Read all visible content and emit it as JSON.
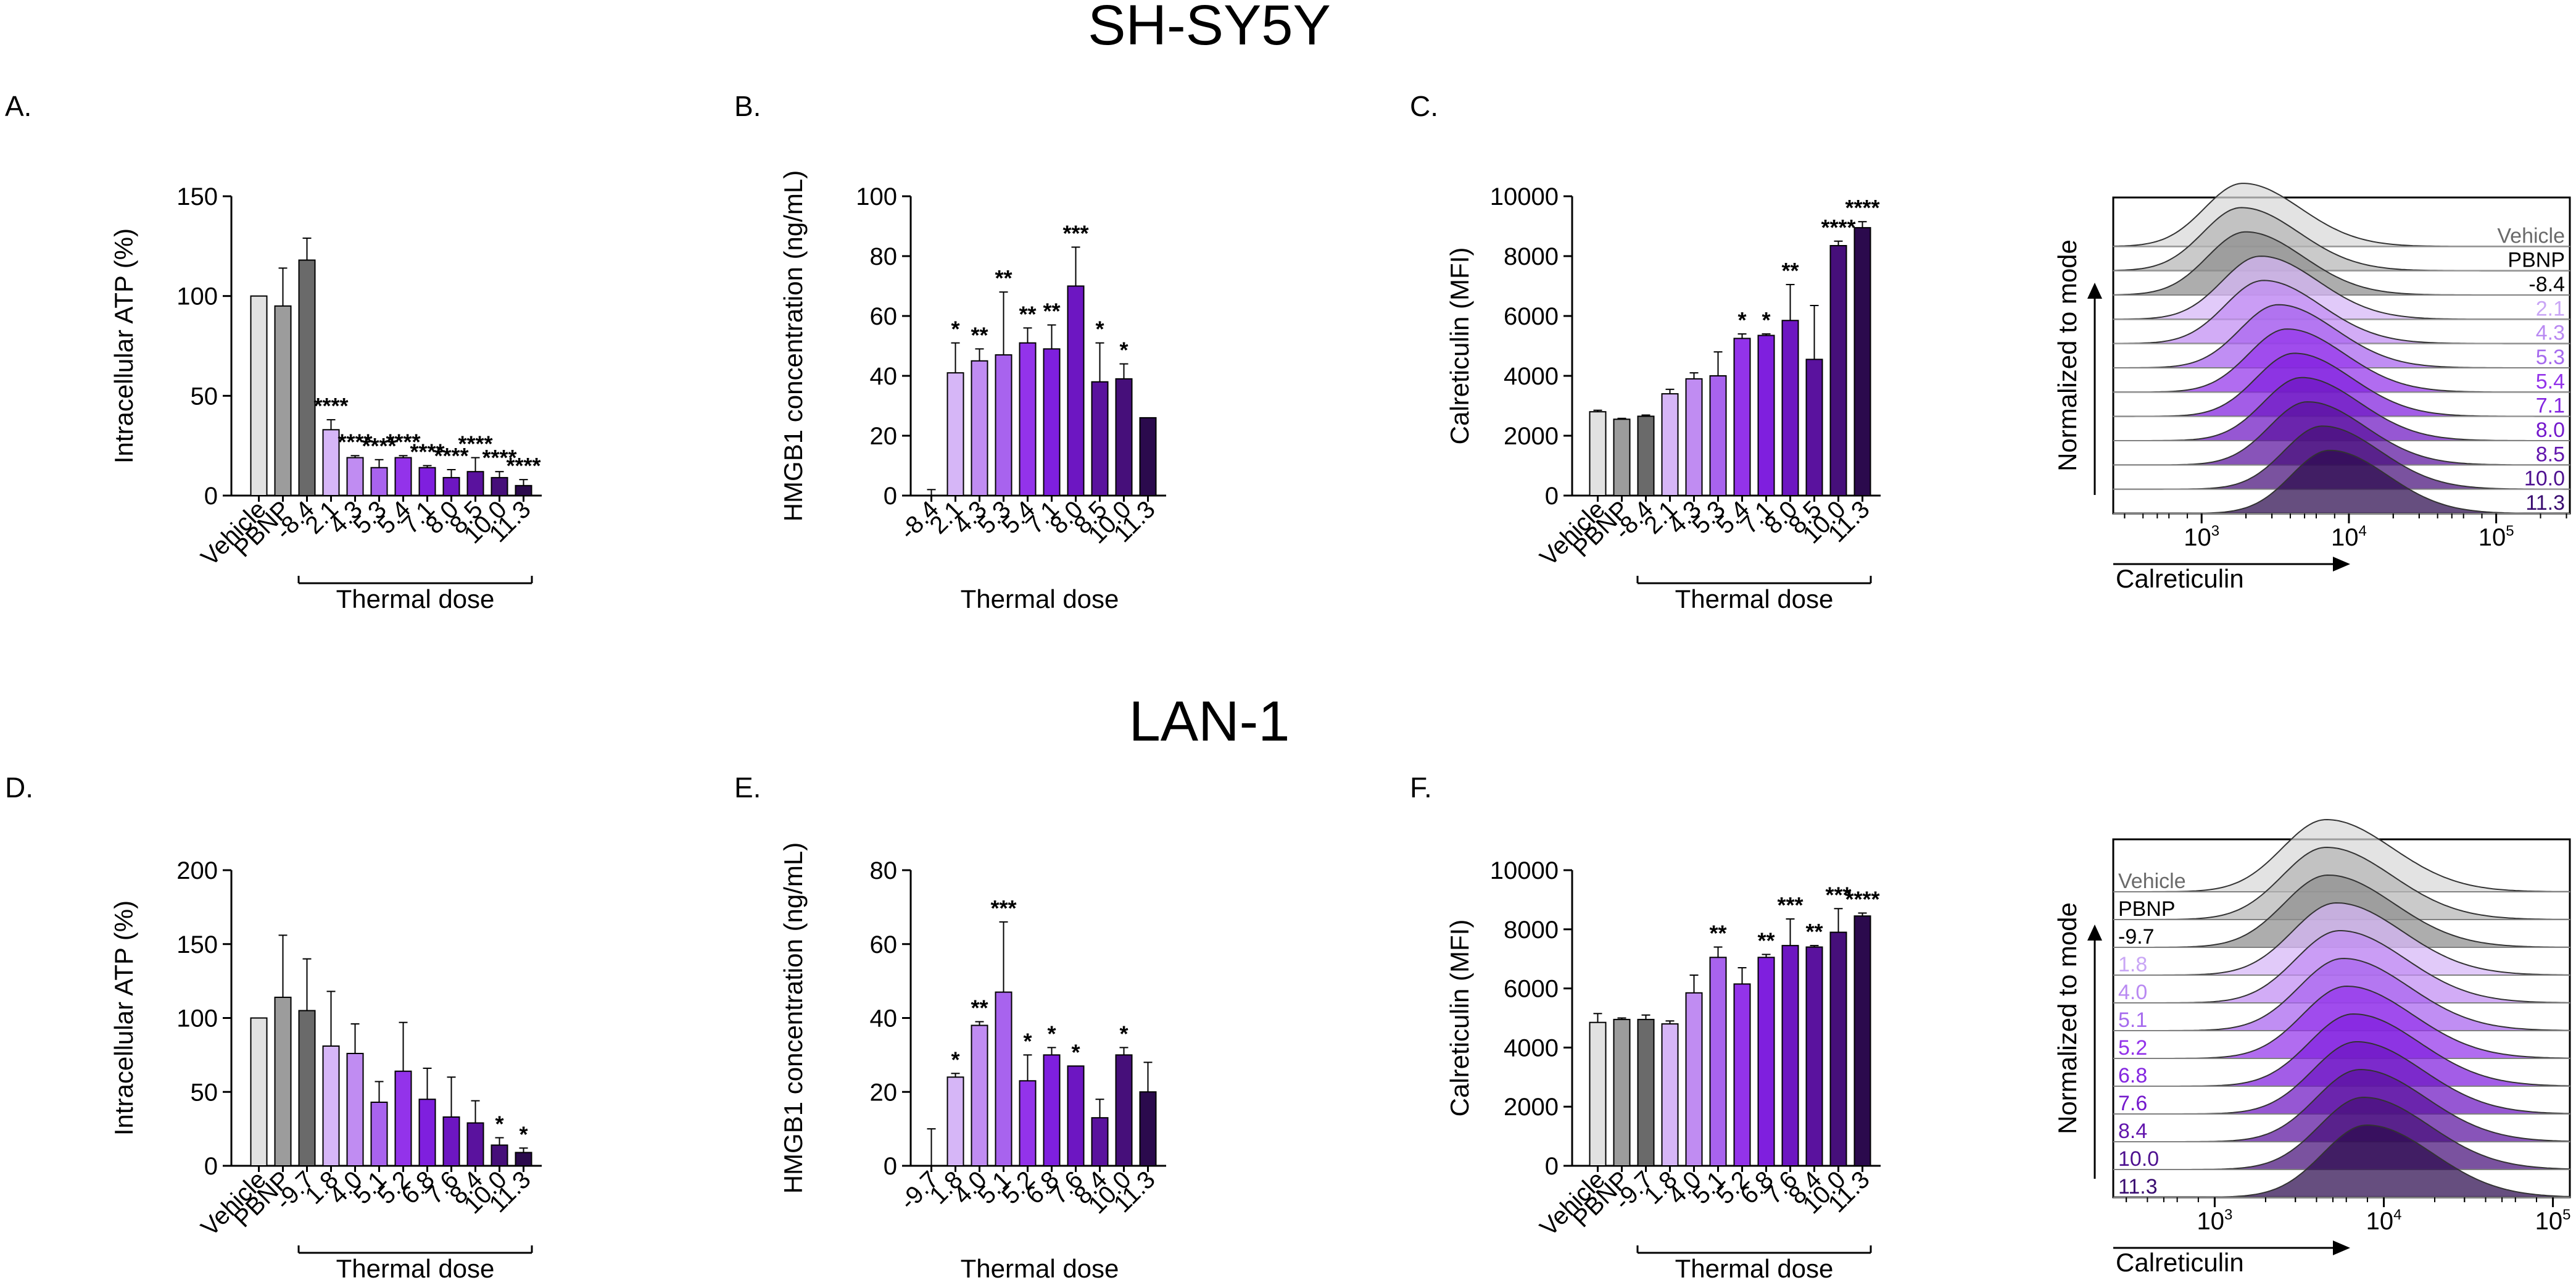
{
  "titles": {
    "top": "SH-SY5Y",
    "bottom": "LAN-1"
  },
  "colors": {
    "Vehicle": "#e2e2e2",
    "PBNP": "#9c9c9c",
    "control": "#6a6a6a",
    "ramp": [
      "#d6b6f7",
      "#c08cf2",
      "#a863ee",
      "#9333ea",
      "#7f1fde",
      "#6d16c2",
      "#5a129e",
      "#460f7a",
      "#2b0a4d"
    ],
    "flow_labels": [
      "#6a6a6a",
      "#000000",
      "#000000",
      "#c9a6f5",
      "#b989f2",
      "#a66bee",
      "#9333ea",
      "#8426e0",
      "#7419cc",
      "#6216ad",
      "#4e1190",
      "#3a0d70"
    ]
  },
  "chart_data": [
    {
      "id": "A",
      "panel_label": "A.",
      "type": "bar",
      "ylabel": "Intracellular ATP (%)",
      "xlabel": "Thermal dose",
      "ylim": [
        0,
        150
      ],
      "yticks": [
        0,
        50,
        100,
        150
      ],
      "categories": [
        "Vehicle",
        "PBNP",
        "-8.4",
        "2.1",
        "4.3",
        "5.3",
        "5.4",
        "7.1",
        "8.0",
        "8.5",
        "10.0",
        "11.3"
      ],
      "values": [
        100,
        95,
        118,
        33,
        19,
        14,
        19,
        14,
        9,
        12,
        9,
        5
      ],
      "errors": [
        0,
        19,
        11,
        5,
        1,
        4,
        1,
        1,
        4,
        7,
        3,
        3
      ],
      "significance": [
        "",
        "",
        "",
        "****",
        "****",
        "****",
        "****",
        "****",
        "****",
        "****",
        "****",
        "****"
      ]
    },
    {
      "id": "B",
      "panel_label": "B.",
      "type": "bar",
      "ylabel": "HMGB1 concentration (ng/mL)",
      "xlabel": "Thermal dose",
      "ylim": [
        0,
        100
      ],
      "yticks": [
        0,
        20,
        40,
        60,
        80,
        100
      ],
      "categories": [
        "-8.4",
        "2.1",
        "4.3",
        "5.3",
        "5.4",
        "7.1",
        "8.0",
        "8.5",
        "10.0",
        "11.3"
      ],
      "values": [
        0,
        41,
        45,
        47,
        51,
        49,
        70,
        38,
        39,
        26
      ],
      "errors": [
        2,
        10,
        4,
        21,
        5,
        8,
        13,
        13,
        5,
        0
      ],
      "significance": [
        "",
        "*",
        "**",
        "**",
        "**",
        "**",
        "***",
        "*",
        "*",
        ""
      ]
    },
    {
      "id": "C",
      "panel_label": "C.",
      "type": "bar",
      "ylabel": "Calreticulin (MFI)",
      "xlabel": "Thermal dose",
      "ylim": [
        0,
        10000
      ],
      "yticks": [
        0,
        2000,
        4000,
        6000,
        8000,
        10000
      ],
      "categories": [
        "Vehicle",
        "PBNP",
        "-8.4",
        "2.1",
        "4.3",
        "5.3",
        "5.4",
        "7.1",
        "8.0",
        "8.5",
        "10.0",
        "11.3"
      ],
      "values": [
        2800,
        2550,
        2650,
        3400,
        3900,
        4000,
        5250,
        5350,
        5850,
        4550,
        8350,
        8950
      ],
      "errors": [
        50,
        30,
        40,
        150,
        200,
        800,
        150,
        50,
        1200,
        1800,
        150,
        200
      ],
      "significance": [
        "",
        "",
        "",
        "",
        "",
        "",
        "*",
        "*",
        "**",
        "",
        "****",
        "****"
      ]
    },
    {
      "id": "D",
      "panel_label": "D.",
      "type": "bar",
      "ylabel": "Intracellular ATP (%)",
      "xlabel": "Thermal dose",
      "ylim": [
        0,
        200
      ],
      "yticks": [
        0,
        50,
        100,
        150,
        200
      ],
      "categories": [
        "Vehicle",
        "PBNP",
        "-9.7",
        "1.8",
        "4.0",
        "5.1",
        "5.2",
        "6.8",
        "7.6",
        "8.4",
        "10.0",
        "11.3"
      ],
      "values": [
        100,
        114,
        105,
        81,
        76,
        43,
        64,
        45,
        33,
        29,
        14,
        9
      ],
      "errors": [
        0,
        42,
        35,
        37,
        20,
        14,
        33,
        21,
        27,
        15,
        5,
        3
      ],
      "significance": [
        "",
        "",
        "",
        "",
        "",
        "",
        "",
        "",
        "",
        "",
        "*",
        "*"
      ]
    },
    {
      "id": "E",
      "panel_label": "E.",
      "type": "bar",
      "ylabel": "HMGB1 concentration (ng/mL)",
      "xlabel": "Thermal dose",
      "ylim": [
        0,
        80
      ],
      "yticks": [
        0,
        20,
        40,
        60,
        80
      ],
      "categories": [
        "-9.7",
        "1.8",
        "4.0",
        "5.1",
        "5.2",
        "6.8",
        "7.6",
        "8.4",
        "10.0",
        "11.3"
      ],
      "values": [
        0,
        24,
        38,
        47,
        23,
        30,
        27,
        13,
        30,
        20
      ],
      "errors": [
        10,
        1,
        1,
        19,
        7,
        2,
        0,
        5,
        2,
        8
      ],
      "significance": [
        "",
        "*",
        "**",
        "***",
        "*",
        "*",
        "*",
        "",
        "*",
        ""
      ]
    },
    {
      "id": "F",
      "panel_label": "F.",
      "type": "bar",
      "ylabel": "Calreticulin (MFI)",
      "xlabel": "Thermal dose",
      "ylim": [
        0,
        10000
      ],
      "yticks": [
        0,
        2000,
        4000,
        6000,
        8000,
        10000
      ],
      "categories": [
        "Vehicle",
        "PBNP",
        "-9.7",
        "1.8",
        "4.0",
        "5.1",
        "5.2",
        "6.8",
        "7.6",
        "8.4",
        "10.0",
        "11.3"
      ],
      "values": [
        4850,
        4950,
        4950,
        4800,
        5850,
        7050,
        6150,
        7050,
        7450,
        7400,
        7900,
        8450
      ],
      "errors": [
        300,
        50,
        150,
        100,
        600,
        350,
        550,
        100,
        900,
        50,
        800,
        100
      ],
      "significance": [
        "",
        "",
        "",
        "",
        "",
        "**",
        "",
        "**",
        "***",
        "**",
        "***",
        "****"
      ]
    },
    {
      "id": "C-flow",
      "type": "histogram-stack",
      "ylabel": "Normalized to mode",
      "xlabel": "Calreticulin",
      "x_ticks": [
        "10",
        "10",
        "10"
      ],
      "x_tick_exponents": [
        "3",
        "4",
        "5"
      ],
      "x_log_range": [
        2.4,
        5.5
      ],
      "legend": [
        "Vehicle",
        "PBNP",
        "-8.4",
        "2.1",
        "4.3",
        "5.3",
        "5.4",
        "7.1",
        "8.0",
        "8.5",
        "10.0",
        "11.3"
      ],
      "peak_log": [
        3.28,
        3.27,
        3.3,
        3.4,
        3.42,
        3.52,
        3.58,
        3.63,
        3.68,
        3.72,
        3.82,
        3.87
      ]
    },
    {
      "id": "F-flow",
      "type": "histogram-stack",
      "ylabel": "Normalized to mode",
      "xlabel": "Calreticulin",
      "x_ticks": [
        "10",
        "10",
        "10"
      ],
      "x_tick_exponents": [
        "3",
        "4",
        "5"
      ],
      "x_log_range": [
        2.4,
        5.1
      ],
      "legend": [
        "Vehicle",
        "PBNP",
        "-9.7",
        "1.8",
        "4.0",
        "5.1",
        "5.2",
        "6.8",
        "7.6",
        "8.4",
        "10.0",
        "11.3"
      ],
      "peak_log": [
        3.66,
        3.66,
        3.67,
        3.72,
        3.74,
        3.76,
        3.78,
        3.82,
        3.84,
        3.86,
        3.88,
        3.9
      ]
    }
  ]
}
